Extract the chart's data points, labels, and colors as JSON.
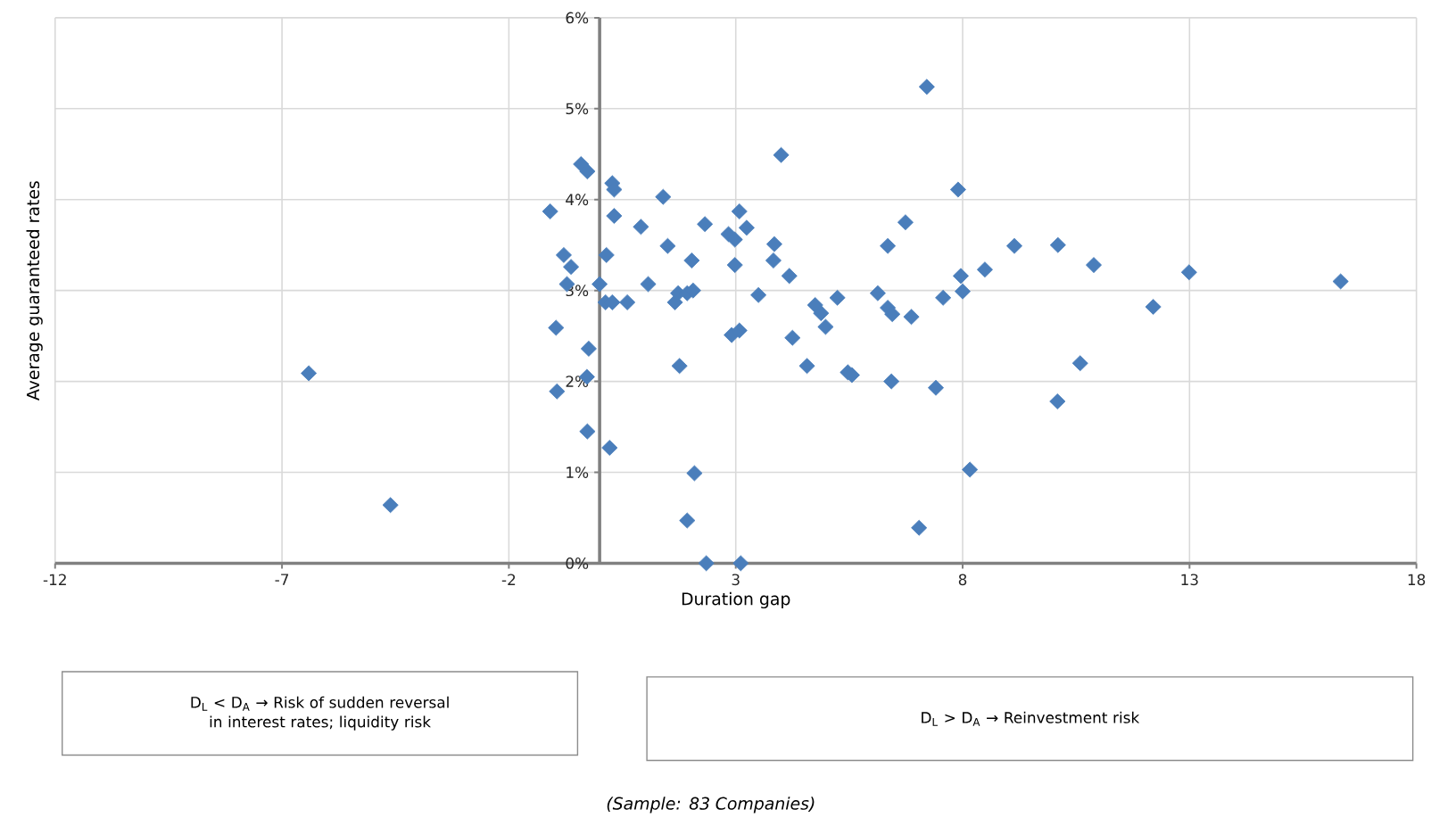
{
  "chart_data": {
    "type": "scatter",
    "xlabel": "Duration gap",
    "ylabel": "Average guaranteed rates",
    "xlim": [
      -12,
      18
    ],
    "xticks": [
      -12,
      -7,
      -2,
      3,
      8,
      13,
      18
    ],
    "ylim": [
      0,
      6
    ],
    "yticks": [
      {
        "value": 0,
        "label": "0%"
      },
      {
        "value": 1,
        "label": "1%"
      },
      {
        "value": 2,
        "label": "2%"
      },
      {
        "value": 3,
        "label": "3%"
      },
      {
        "value": 4,
        "label": "4%"
      },
      {
        "value": 5,
        "label": "5%"
      },
      {
        "value": 6,
        "label": "6%"
      }
    ],
    "grid": true,
    "marker": "diamond",
    "color": "#4a7ebb",
    "x": [
      -6.41,
      -4.61,
      -1.09,
      -0.41,
      -0.27,
      -0.79,
      -0.63,
      -0.72,
      -0.96,
      -0.24,
      -0.28,
      -0.94,
      -0.27,
      0.22,
      0.28,
      0.32,
      0.32,
      0.15,
      0.0,
      0.13,
      0.28,
      0.61,
      0.91,
      1.07,
      1.4,
      1.5,
      1.66,
      1.73,
      1.93,
      2.06,
      2.03,
      2.32,
      1.76,
      2.09,
      1.93,
      2.35,
      3.11,
      2.84,
      2.98,
      3.08,
      3.24,
      2.98,
      2.91,
      3.08,
      3.5,
      3.85,
      3.83,
      4.0,
      4.18,
      4.25,
      4.57,
      4.75,
      7.21,
      7.9,
      6.74,
      6.35,
      9.14,
      10.1,
      10.89,
      12.99,
      16.33,
      7.96,
      8.49,
      8.0,
      7.57,
      6.13,
      6.35,
      6.45,
      6.87,
      5.24,
      4.88,
      4.98,
      5.47,
      5.56,
      6.43,
      7.41,
      10.59,
      12.2,
      10.09,
      8.16,
      7.04
    ],
    "values": [
      2.09,
      0.64,
      3.87,
      4.39,
      4.31,
      3.39,
      3.26,
      3.07,
      2.59,
      2.36,
      2.05,
      1.89,
      1.45,
      1.27,
      4.18,
      4.11,
      3.82,
      3.39,
      3.07,
      2.87,
      2.87,
      2.87,
      3.7,
      3.07,
      4.03,
      3.49,
      2.87,
      2.97,
      2.97,
      3.0,
      3.33,
      3.73,
      2.17,
      0.99,
      0.47,
      0.0,
      0.0,
      3.62,
      3.56,
      3.87,
      3.69,
      3.28,
      2.51,
      2.56,
      2.95,
      3.51,
      3.33,
      4.49,
      3.16,
      2.48,
      2.17,
      2.84,
      5.24,
      4.11,
      3.75,
      3.49,
      3.49,
      3.5,
      3.28,
      3.2,
      3.1,
      3.16,
      3.23,
      2.99,
      2.92,
      2.97,
      2.81,
      2.74,
      2.71,
      2.92,
      2.75,
      2.6,
      2.1,
      2.07,
      2.0,
      1.93,
      2.2,
      2.82,
      1.78,
      1.03,
      0.39
    ],
    "annotations": [
      "D$_{L}$ < D$_{A}$ → Risk of sudden reversal in interest rates; liquidity risk",
      "D$_{L}$ > D$_{A}$ → Reinvestment risk",
      "(Sample: 83 Companies)"
    ]
  }
}
